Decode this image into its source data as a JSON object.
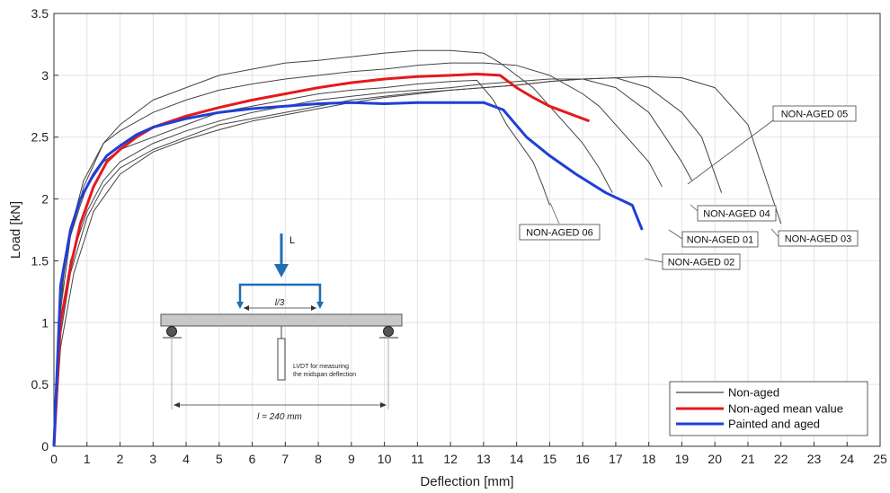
{
  "chart_data": {
    "type": "line",
    "xlabel": "Deflection [mm]",
    "ylabel": "Load [kN]",
    "xlim": [
      0,
      25
    ],
    "ylim": [
      0,
      3.5
    ],
    "xticks": [
      "0",
      "1",
      "2",
      "3",
      "4",
      "5",
      "6",
      "7",
      "8",
      "9",
      "10",
      "11",
      "12",
      "13",
      "14",
      "15",
      "16",
      "17",
      "18",
      "19",
      "20",
      "21",
      "22",
      "23",
      "24",
      "25"
    ],
    "yticks": [
      "0",
      "0.5",
      "1",
      "1.5",
      "2",
      "2.5",
      "3",
      "3.5"
    ],
    "grid": true,
    "legend_position": "bottom-right",
    "legend": [
      {
        "label": "Non-aged",
        "color": "#444444"
      },
      {
        "label": "Non-aged mean value",
        "color": "#e41a1c"
      },
      {
        "label": "Painted and aged",
        "color": "#1f3fd6"
      }
    ],
    "series": [
      {
        "name": "NON-AGED 06",
        "group": "Non-aged",
        "color": "#444444",
        "x": [
          0,
          0.15,
          0.3,
          0.5,
          0.8,
          1.0,
          1.5,
          2,
          3,
          4,
          5,
          6,
          7,
          8,
          9,
          10,
          11,
          12,
          12.8,
          13.3,
          13.7,
          14.1,
          14.5,
          14.8,
          15.0
        ],
        "y": [
          0,
          0.9,
          1.4,
          1.7,
          1.95,
          2.1,
          2.3,
          2.4,
          2.5,
          2.6,
          2.7,
          2.75,
          2.8,
          2.85,
          2.88,
          2.9,
          2.93,
          2.95,
          2.96,
          2.8,
          2.6,
          2.45,
          2.3,
          2.1,
          1.95
        ]
      },
      {
        "name": "NON-AGED 02",
        "group": "Non-aged",
        "color": "#444444",
        "x": [
          0,
          0.2,
          0.5,
          0.9,
          1.5,
          2,
          3,
          4,
          5,
          6,
          7,
          8,
          9,
          10,
          11,
          12,
          13,
          13.5,
          14,
          14.5,
          15,
          15.5,
          16,
          16.5,
          16.9
        ],
        "y": [
          0,
          1.1,
          1.7,
          2.1,
          2.45,
          2.6,
          2.8,
          2.9,
          3.0,
          3.05,
          3.1,
          3.12,
          3.15,
          3.18,
          3.2,
          3.2,
          3.18,
          3.1,
          3.0,
          2.9,
          2.75,
          2.6,
          2.45,
          2.25,
          2.05
        ]
      },
      {
        "name": "NON-AGED 01",
        "group": "Non-aged",
        "color": "#444444",
        "x": [
          0,
          0.2,
          0.5,
          0.9,
          1.5,
          2,
          3,
          4,
          5,
          6,
          7,
          8,
          9,
          10,
          11,
          12,
          13,
          14,
          15,
          16,
          16.5,
          17,
          17.5,
          18.0,
          18.4
        ],
        "y": [
          0,
          1.2,
          1.75,
          2.15,
          2.45,
          2.55,
          2.7,
          2.8,
          2.88,
          2.93,
          2.97,
          3.0,
          3.03,
          3.05,
          3.08,
          3.1,
          3.1,
          3.08,
          3.0,
          2.85,
          2.75,
          2.6,
          2.45,
          2.3,
          2.1
        ]
      },
      {
        "name": "NON-AGED 05",
        "group": "Non-aged",
        "color": "#444444",
        "x": [
          0,
          0.2,
          0.5,
          1.0,
          1.5,
          2,
          3,
          4,
          5,
          6,
          7,
          8,
          9,
          10,
          11,
          12,
          13,
          14,
          15,
          16,
          17,
          18,
          18.5,
          19,
          19.3
        ],
        "y": [
          0,
          1.0,
          1.5,
          1.9,
          2.15,
          2.3,
          2.45,
          2.55,
          2.63,
          2.7,
          2.75,
          2.8,
          2.83,
          2.86,
          2.88,
          2.9,
          2.93,
          2.95,
          2.97,
          2.97,
          2.9,
          2.7,
          2.5,
          2.3,
          2.15
        ]
      },
      {
        "name": "NON-AGED 04",
        "group": "Non-aged",
        "color": "#444444",
        "x": [
          0,
          0.2,
          0.5,
          1.0,
          1.5,
          2,
          3,
          4,
          5,
          6,
          7,
          8,
          9,
          10,
          11,
          12,
          13,
          14,
          15,
          16,
          17,
          18,
          19,
          19.6,
          20.2
        ],
        "y": [
          0,
          0.9,
          1.4,
          1.85,
          2.1,
          2.25,
          2.4,
          2.5,
          2.6,
          2.65,
          2.7,
          2.75,
          2.8,
          2.83,
          2.86,
          2.88,
          2.9,
          2.92,
          2.95,
          2.97,
          2.98,
          2.9,
          2.7,
          2.5,
          2.05
        ]
      },
      {
        "name": "NON-AGED 03",
        "group": "Non-aged",
        "color": "#444444",
        "x": [
          0,
          0.2,
          0.6,
          1.2,
          2,
          3,
          4,
          5,
          6,
          7,
          8,
          9,
          10,
          11,
          12,
          13,
          14,
          15,
          16,
          17,
          18,
          19,
          20,
          21,
          22.0
        ],
        "y": [
          0,
          0.8,
          1.4,
          1.9,
          2.2,
          2.38,
          2.48,
          2.56,
          2.63,
          2.68,
          2.73,
          2.78,
          2.82,
          2.85,
          2.88,
          2.9,
          2.92,
          2.95,
          2.97,
          2.98,
          2.99,
          2.98,
          2.9,
          2.6,
          1.8
        ]
      },
      {
        "name": "Non-aged mean value",
        "group": "mean",
        "color": "#e41a1c",
        "x": [
          0,
          0.2,
          0.5,
          0.8,
          1.2,
          1.6,
          2.0,
          2.5,
          3,
          4,
          5,
          6,
          7,
          8,
          9,
          10,
          11,
          12,
          12.8,
          13.5,
          14.0,
          14.5,
          15.0,
          15.5,
          16.2
        ],
        "y": [
          0,
          1.0,
          1.45,
          1.8,
          2.1,
          2.3,
          2.4,
          2.5,
          2.58,
          2.67,
          2.74,
          2.8,
          2.85,
          2.9,
          2.94,
          2.97,
          2.99,
          3.0,
          3.01,
          3.0,
          2.9,
          2.82,
          2.75,
          2.7,
          2.63
        ]
      },
      {
        "name": "Painted and aged",
        "group": "aged",
        "color": "#1f3fd6",
        "x": [
          0,
          0.2,
          0.5,
          0.8,
          1.2,
          1.6,
          2.0,
          2.5,
          3,
          4,
          5,
          6,
          7,
          8,
          9,
          10,
          11,
          12,
          13.0,
          13.6,
          14.3,
          15.0,
          15.8,
          16.7,
          17.5,
          17.8
        ],
        "y": [
          0,
          1.3,
          1.75,
          2.0,
          2.2,
          2.35,
          2.43,
          2.52,
          2.58,
          2.65,
          2.7,
          2.73,
          2.75,
          2.77,
          2.78,
          2.77,
          2.78,
          2.78,
          2.78,
          2.72,
          2.5,
          2.35,
          2.2,
          2.05,
          1.95,
          1.75
        ]
      }
    ],
    "annotations": [
      {
        "label": "NON-AGED 06"
      },
      {
        "label": "NON-AGED 05"
      },
      {
        "label": "NON-AGED 04"
      },
      {
        "label": "NON-AGED 01"
      },
      {
        "label": "NON-AGED 03"
      },
      {
        "label": "NON-AGED 02"
      }
    ],
    "inset": {
      "load_label": "L",
      "third_label": "l/3",
      "span_label": "l = 240 mm",
      "lvdt_line1": "LVDT for measuring",
      "lvdt_line2": "the midspan deflection"
    }
  },
  "colors": {
    "non_aged": "#444444",
    "mean": "#e41a1c",
    "aged": "#1f3fd6",
    "inset_blue": "#1f6fb2"
  }
}
